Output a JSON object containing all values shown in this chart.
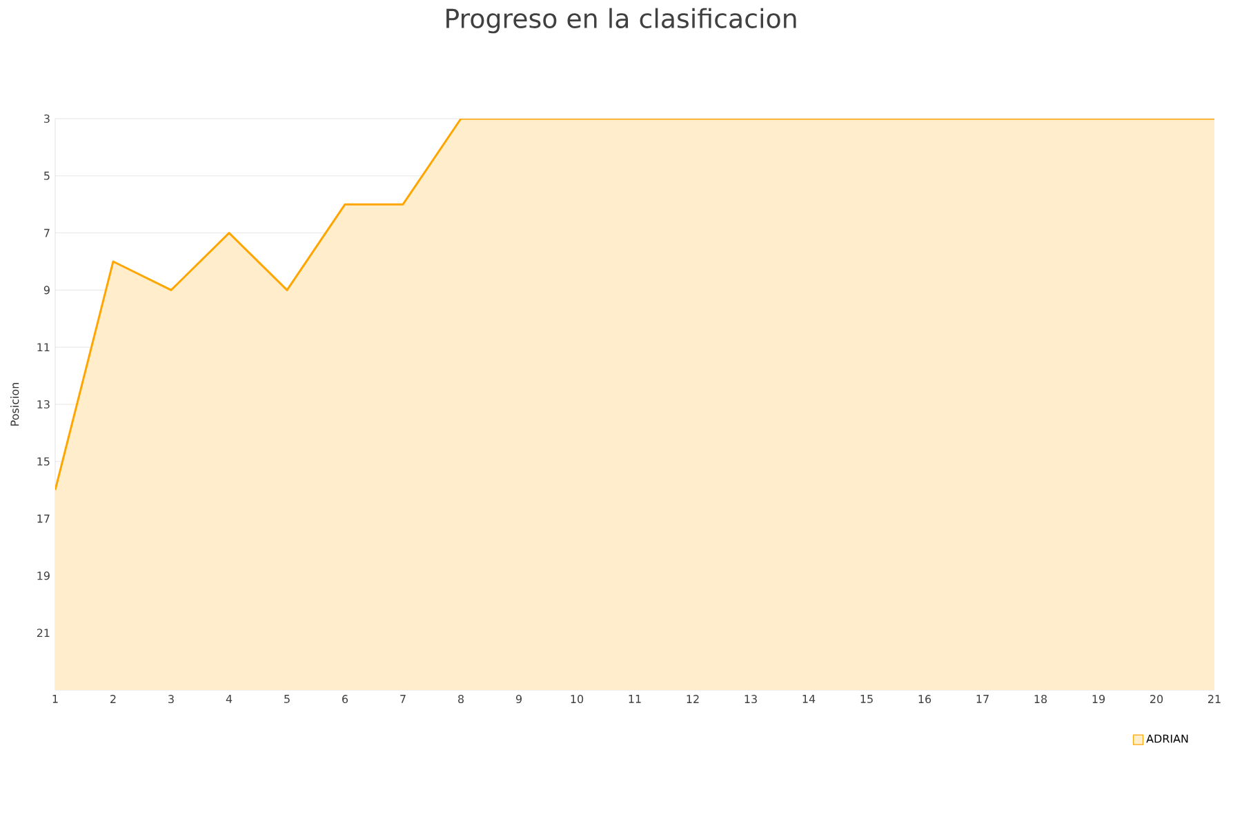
{
  "chart_data": {
    "type": "area",
    "title": "Progreso en la clasificacion",
    "ylabel": "Posicion",
    "x": [
      1,
      2,
      3,
      4,
      5,
      6,
      7,
      8,
      9,
      10,
      11,
      12,
      13,
      14,
      15,
      16,
      17,
      18,
      19,
      20,
      21
    ],
    "series": [
      {
        "name": "ADRIAN",
        "color": "#ffa500",
        "values": [
          16,
          8,
          9,
          7,
          9,
          6,
          6,
          3,
          3,
          3,
          3,
          3,
          3,
          3,
          3,
          3,
          3,
          3,
          3,
          3,
          3
        ]
      }
    ],
    "xlim": [
      1,
      21
    ],
    "xticks": [
      1,
      2,
      3,
      4,
      5,
      6,
      7,
      8,
      9,
      10,
      11,
      12,
      13,
      14,
      15,
      16,
      17,
      18,
      19,
      20,
      21
    ],
    "ylim": [
      23,
      3
    ],
    "yticks": [
      3,
      5,
      7,
      9,
      11,
      13,
      15,
      17,
      19,
      21
    ],
    "grid": "y",
    "legend": "bottom right",
    "marker": "none",
    "line_style": "solid"
  }
}
